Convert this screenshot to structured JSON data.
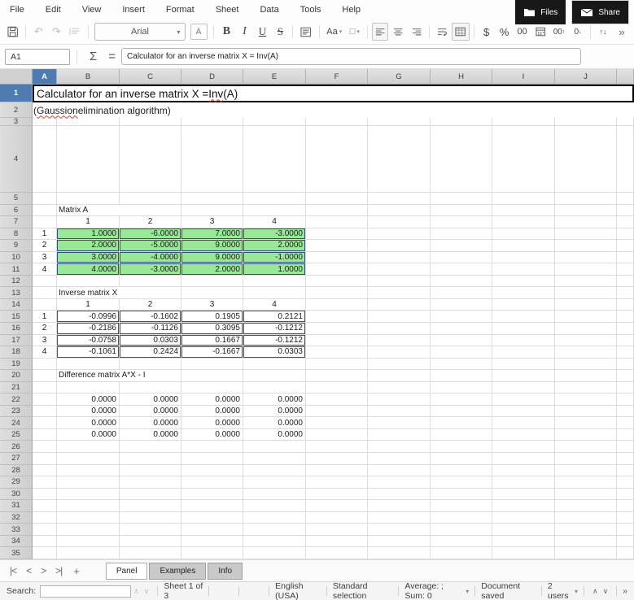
{
  "menu": {
    "items": [
      "File",
      "Edit",
      "View",
      "Insert",
      "Format",
      "Sheet",
      "Data",
      "Tools",
      "Help"
    ]
  },
  "window_buttons": {
    "files": "Files",
    "share": "Share"
  },
  "toolbar": {
    "font_name": "Arial",
    "bold": "B",
    "italic": "I",
    "underline": "U",
    "strikethrough": "S",
    "case_label": "Aa",
    "border_label": "□",
    "currency": "$",
    "percent": "%",
    "number_format": "00",
    "add_decimal": "00",
    "remove_decimal": "0",
    "overflow": "»"
  },
  "formula_bar": {
    "cell_ref": "A1",
    "sigma": "Σ",
    "equals": "=",
    "formula": "Calculator for an inverse matrix X = Inv(A)"
  },
  "grid": {
    "columns": [
      "A",
      "B",
      "C",
      "D",
      "E",
      "F",
      "G",
      "H",
      "I",
      "J"
    ],
    "selected_column": "A",
    "selected_row": 1,
    "row_count": 35
  },
  "sheet_content": {
    "title": {
      "pre": "Calculator for an inverse matrix X = ",
      "misspelled": "Inv",
      "post": "(A)"
    },
    "subtitle": {
      "pre": "(",
      "misspelled": "Gaussion",
      "post": " elimination algorithm)"
    },
    "matrix_a": {
      "label": "Matrix A",
      "col_headers": [
        "1",
        "2",
        "3",
        "4"
      ],
      "row_headers": [
        "1",
        "2",
        "3",
        "4"
      ],
      "values": [
        [
          "1.0000",
          "-6.0000",
          "7.0000",
          "-3.0000"
        ],
        [
          "2.0000",
          "-5.0000",
          "9.0000",
          "2.0000"
        ],
        [
          "3.0000",
          "-4.0000",
          "9.0000",
          "-1.0000"
        ],
        [
          "4.0000",
          "-3.0000",
          "2.0000",
          "1.0000"
        ]
      ]
    },
    "inverse_x": {
      "label": "Inverse matrix X",
      "col_headers": [
        "1",
        "2",
        "3",
        "4"
      ],
      "row_headers": [
        "1",
        "2",
        "3",
        "4"
      ],
      "values": [
        [
          "-0.0996",
          "-0.1602",
          "0.1905",
          "0.2121"
        ],
        [
          "-0.2186",
          "-0.1126",
          "0.3095",
          "-0.1212"
        ],
        [
          "-0.0758",
          "0.0303",
          "0.1667",
          "-0.1212"
        ],
        [
          "-0.1061",
          "0.2424",
          "-0.1667",
          "0.0303"
        ]
      ]
    },
    "difference": {
      "label": "Difference matrix A*X - I",
      "values": [
        [
          "0.0000",
          "0.0000",
          "0.0000",
          "0.0000"
        ],
        [
          "0.0000",
          "0.0000",
          "0.0000",
          "0.0000"
        ],
        [
          "0.0000",
          "0.0000",
          "0.0000",
          "0.0000"
        ],
        [
          "0.0000",
          "0.0000",
          "0.0000",
          "0.0000"
        ]
      ]
    }
  },
  "sheet_tabs": {
    "tabs": [
      {
        "label": "Panel",
        "active": true
      },
      {
        "label": "Examples",
        "active": false
      },
      {
        "label": "Info",
        "active": false
      }
    ]
  },
  "status_bar": {
    "search_label": "Search:",
    "sheet_info": "Sheet 1 of 3",
    "language": "English (USA)",
    "selection_mode": "Standard selection",
    "aggregate": "Average: ; Sum: 0",
    "doc_status": "Document saved",
    "users": "2 users",
    "overflow": "»"
  },
  "colors": {
    "accent_blue": "#4f7cb0",
    "matrix_green": "#98e898",
    "selection_border": "#000000",
    "squiggle_red": "#e0342b"
  }
}
